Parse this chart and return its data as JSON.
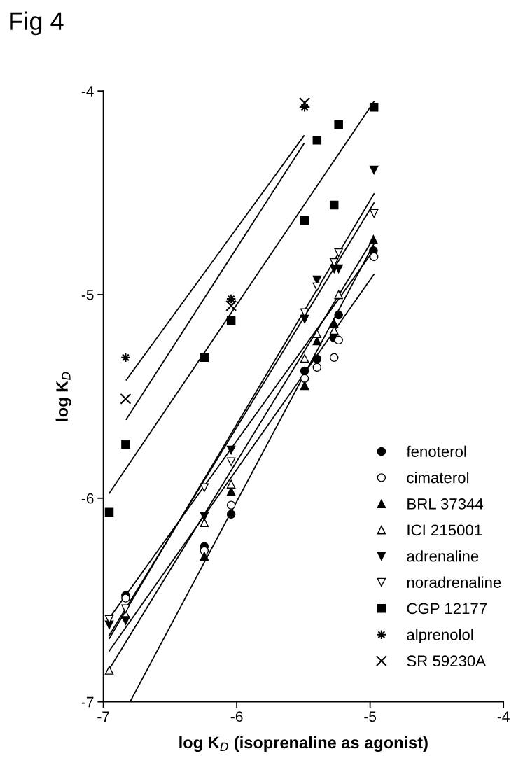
{
  "chart_data": {
    "type": "scatter",
    "title": "Fig 4",
    "xlabel": "log K$_{D}$ (isoprenaline as agonist)",
    "ylabel": "log K$_{D}$",
    "xlim": [
      -7,
      -4
    ],
    "ylim": [
      -7,
      -4
    ],
    "xticks": [
      -7,
      -6,
      -5,
      -4
    ],
    "yticks": [
      -7,
      -6,
      -5,
      -4
    ],
    "grid": false,
    "legend": "bottom right",
    "series": [
      {
        "name": "fenoterol",
        "color": "#000000",
        "marker": "circle",
        "x": [
          -6.833,
          -6.243,
          -6.042,
          -5.491,
          -5.398,
          -5.27,
          -5.236,
          -4.975
        ],
        "values": [
          -6.478,
          -6.237,
          -6.079,
          -5.375,
          -5.316,
          -5.213,
          -5.1,
          -4.784
        ]
      },
      {
        "name": "cimaterol",
        "color": "#000000",
        "marker": "circle-open",
        "x": [
          -6.833,
          -6.243,
          -6.042,
          -5.491,
          -5.398,
          -5.27,
          -5.236,
          -4.971
        ],
        "values": [
          -6.491,
          -6.258,
          -6.034,
          -5.412,
          -5.357,
          -5.309,
          -5.223,
          -4.814
        ]
      },
      {
        "name": "BRL 37344",
        "color": "#000000",
        "marker": "triangle",
        "x": [
          -6.243,
          -6.042,
          -5.491,
          -5.398,
          -5.27,
          -4.975
        ],
        "values": [
          -6.285,
          -5.966,
          -5.447,
          -5.227,
          -5.141,
          -4.729
        ]
      },
      {
        "name": "ICI 215001",
        "color": "#000000",
        "marker": "triangle-open",
        "x": [
          -6.956,
          -6.833,
          -6.243,
          -6.042,
          -5.491,
          -5.398,
          -5.27,
          -5.236
        ],
        "values": [
          -6.845,
          -6.57,
          -6.12,
          -5.931,
          -5.313,
          -5.192,
          -5.175,
          -5.0
        ]
      },
      {
        "name": "adrenaline",
        "color": "#000000",
        "marker": "triangle-down",
        "x": [
          -6.956,
          -6.833,
          -6.243,
          -6.042,
          -5.491,
          -5.398,
          -5.27,
          -5.236,
          -4.971
        ],
        "values": [
          -6.622,
          -6.601,
          -6.089,
          -5.763,
          -5.12,
          -4.928,
          -4.873,
          -4.873,
          -4.388
        ]
      },
      {
        "name": "noradrenaline",
        "color": "#000000",
        "marker": "triangle-down-open",
        "x": [
          -6.956,
          -6.833,
          -6.243,
          -6.042,
          -5.491,
          -5.398,
          -5.27,
          -5.236,
          -4.971
        ],
        "values": [
          -6.595,
          -6.543,
          -5.948,
          -5.821,
          -5.089,
          -4.962,
          -4.842,
          -4.794,
          -4.601
        ]
      },
      {
        "name": "CGP 12177",
        "color": "#000000",
        "marker": "square",
        "x": [
          -6.956,
          -6.833,
          -6.243,
          -6.042,
          -5.491,
          -5.398,
          -5.27,
          -5.236,
          -4.971
        ],
        "values": [
          -6.069,
          -5.735,
          -5.309,
          -5.127,
          -4.636,
          -4.241,
          -4.56,
          -4.165,
          -4.079
        ]
      },
      {
        "name": "alprenolol",
        "color": "#000000",
        "marker": "star",
        "x": [
          -6.833,
          -6.042,
          -5.491
        ],
        "values": [
          -5.309,
          -5.021,
          -4.079
        ]
      },
      {
        "name": "SR 59230A",
        "color": "#000000",
        "marker": "cross",
        "x": [
          -6.833,
          -6.042,
          -5.491
        ],
        "values": [
          -5.512,
          -5.055,
          -4.058
        ]
      },
      {
        "type": "line",
        "color": "#000000",
        "marker": "none",
        "x": [
          -6.956,
          -4.971
        ],
        "values": [
          -6.59,
          -4.78
        ]
      },
      {
        "type": "line",
        "color": "#000000",
        "marker": "none",
        "x": [
          -6.956,
          -4.971
        ],
        "values": [
          -6.75,
          -4.9
        ]
      },
      {
        "type": "line",
        "color": "#000000",
        "marker": "none",
        "x": [
          -6.8,
          -4.971
        ],
        "values": [
          -7.0,
          -4.75
        ]
      },
      {
        "type": "line",
        "color": "#000000",
        "marker": "none",
        "x": [
          -6.956,
          -4.971
        ],
        "values": [
          -6.84,
          -4.72
        ]
      },
      {
        "type": "line",
        "color": "#000000",
        "marker": "none",
        "x": [
          -6.956,
          -4.971
        ],
        "values": [
          -6.689,
          -4.505
        ]
      },
      {
        "type": "line",
        "color": "#000000",
        "marker": "none",
        "x": [
          -6.956,
          -4.971
        ],
        "values": [
          -6.674,
          -4.55
        ]
      },
      {
        "type": "line",
        "color": "#000000",
        "marker": "none",
        "x": [
          -6.956,
          -4.971
        ],
        "values": [
          -5.976,
          -4.052
        ]
      },
      {
        "type": "line",
        "color": "#000000",
        "marker": "none",
        "x": [
          -6.828,
          -5.496
        ],
        "values": [
          -5.419,
          -4.22
        ]
      },
      {
        "type": "line",
        "color": "#000000",
        "marker": "none",
        "x": [
          -6.828,
          -5.496
        ],
        "values": [
          -5.612,
          -4.258
        ]
      }
    ]
  }
}
